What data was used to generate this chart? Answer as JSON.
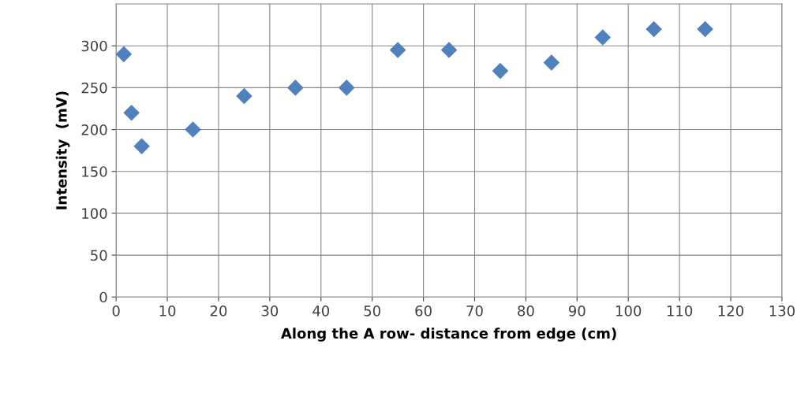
{
  "chart_data": {
    "type": "scatter",
    "xlabel": "Along the A row- distance from edge (cm)",
    "ylabel": "Intensity  (mV)",
    "x": [
      1.5,
      3,
      5,
      15,
      25,
      35,
      45,
      55,
      65,
      75,
      85,
      95,
      105,
      115
    ],
    "series": [
      {
        "color": "#4f81bd",
        "values": [
          290,
          220,
          180,
          200,
          240,
          250,
          250,
          295,
          295,
          270,
          280,
          310,
          320,
          320
        ]
      }
    ],
    "marker": "diamond",
    "grid": true,
    "legend": false,
    "xlim": [
      0,
      130
    ],
    "xticks": [
      0,
      10,
      20,
      30,
      40,
      50,
      60,
      70,
      80,
      90,
      100,
      110,
      120,
      130
    ],
    "ylim": [
      0,
      350
    ],
    "yticks": [
      0,
      50,
      100,
      150,
      200,
      250,
      300
    ]
  }
}
